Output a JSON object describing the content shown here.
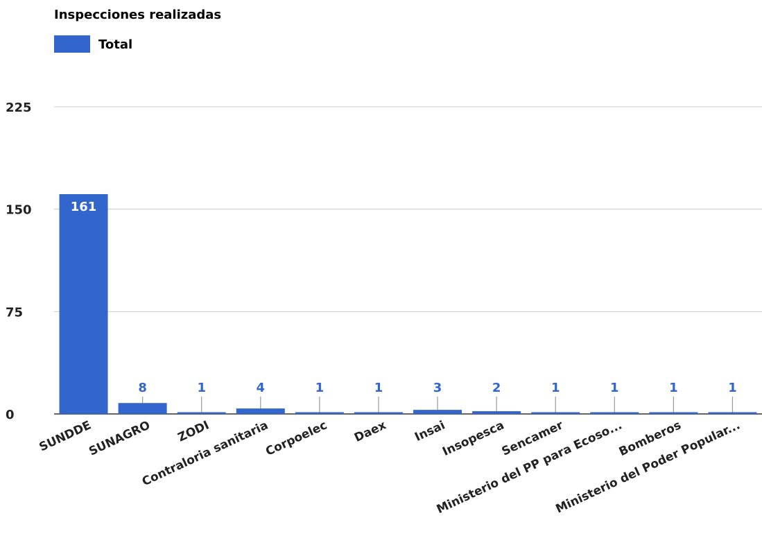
{
  "chart_data": {
    "type": "bar",
    "title": "Inspecciones realizadas",
    "legend": {
      "position": "top-left",
      "entries": [
        "Total"
      ]
    },
    "categories": [
      "SUNDDE",
      "SUNAGRO",
      "ZODI",
      "Contraloria sanitaria",
      "Corpoelec",
      "Daex",
      "Insai",
      "Insopesca",
      "Sencamer",
      "Ministerio del PP para Ecoso...",
      "Bomberos",
      "Ministerio del Poder Popular..."
    ],
    "series": [
      {
        "name": "Total",
        "values": [
          161,
          8,
          1,
          4,
          1,
          1,
          3,
          2,
          1,
          1,
          1,
          1
        ],
        "color": "#3366cc"
      }
    ],
    "yticks": [
      0,
      75,
      150,
      225
    ],
    "ylim": [
      0,
      225
    ],
    "grid": true,
    "xlabel": "",
    "ylabel": ""
  }
}
